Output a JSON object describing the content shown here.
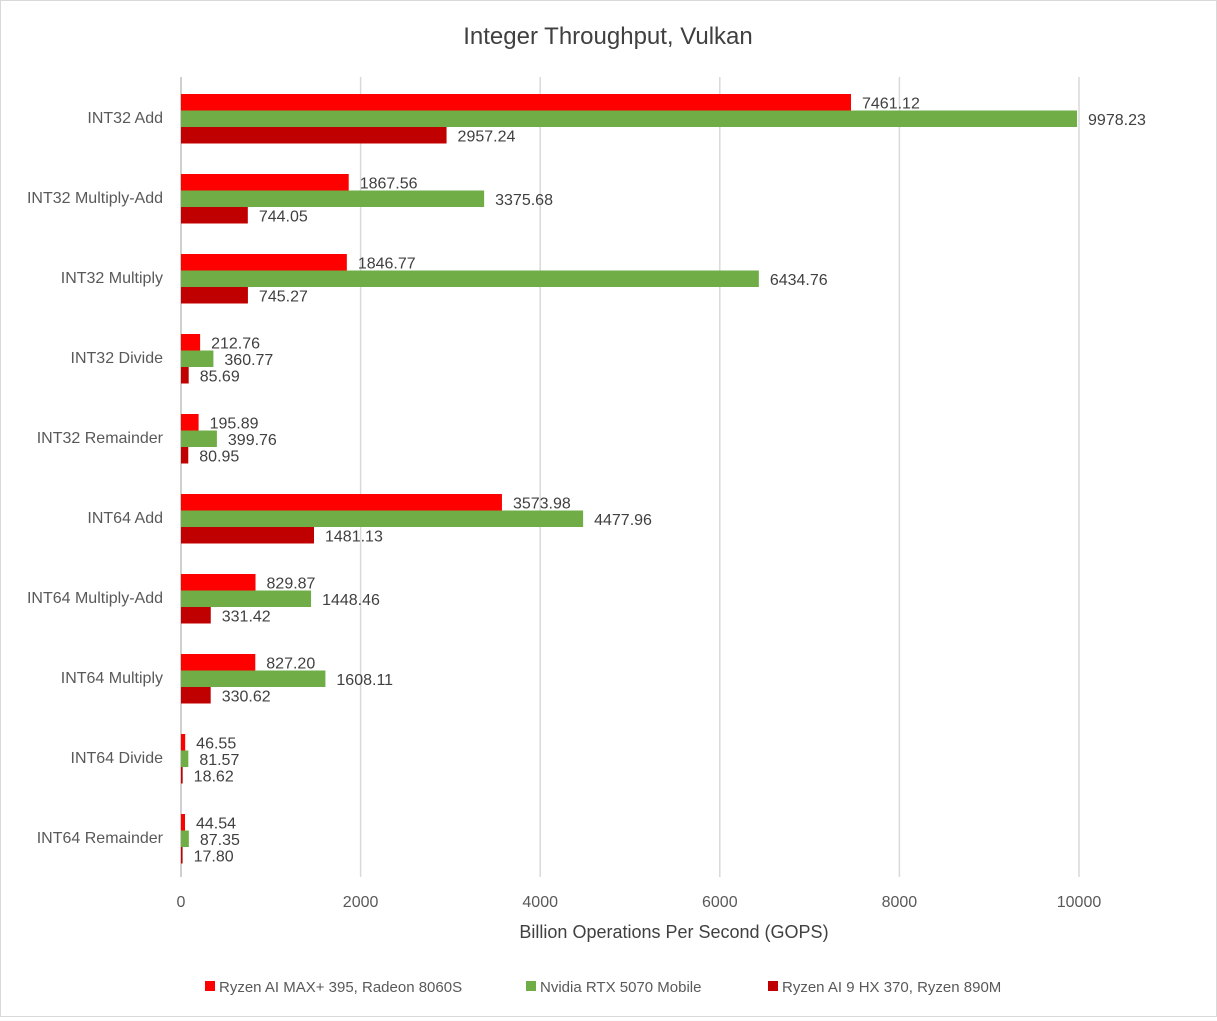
{
  "chart_data": {
    "type": "bar",
    "orientation": "horizontal",
    "title": "Integer Throughput, Vulkan",
    "xlabel": "Billion Operations Per Second (GOPS)",
    "ylabel": "",
    "xlim": [
      0,
      10000
    ],
    "xticks": [
      0,
      2000,
      4000,
      6000,
      8000,
      10000
    ],
    "grid": true,
    "legend_position": "bottom",
    "categories": [
      "INT32 Add",
      "INT32 Multiply-Add",
      "INT32 Multiply",
      "INT32 Divide",
      "INT32 Remainder",
      "INT64 Add",
      "INT64 Multiply-Add",
      "INT64 Multiply",
      "INT64 Divide",
      "INT64 Remainder"
    ],
    "series": [
      {
        "name": "Ryzen AI MAX+ 395, Radeon 8060S",
        "color": "#ff0000",
        "values": [
          7461.12,
          1867.56,
          1846.77,
          212.76,
          195.89,
          3573.98,
          829.87,
          827.2,
          46.55,
          44.54
        ],
        "labels": [
          "7461.12",
          "1867.56",
          "1846.77",
          "212.76",
          "195.89",
          "3573.98",
          "829.87",
          "827.20",
          "46.55",
          "44.54"
        ]
      },
      {
        "name": "Nvidia RTX 5070 Mobile",
        "color": "#70ad47",
        "values": [
          9978.23,
          3375.68,
          6434.76,
          360.77,
          399.76,
          4477.96,
          1448.46,
          1608.11,
          81.57,
          87.35
        ],
        "labels": [
          "9978.23",
          "3375.68",
          "6434.76",
          "360.77",
          "399.76",
          "4477.96",
          "1448.46",
          "1608.11",
          "81.57",
          "87.35"
        ]
      },
      {
        "name": "Ryzen AI 9 HX 370, Ryzen 890M",
        "color": "#c00000",
        "values": [
          2957.24,
          744.05,
          745.27,
          85.69,
          80.95,
          1481.13,
          331.42,
          330.62,
          18.62,
          17.8
        ],
        "labels": [
          "2957.24",
          "744.05",
          "745.27",
          "85.69",
          "80.95",
          "1481.13",
          "331.42",
          "330.62",
          "18.62",
          "17.80"
        ]
      }
    ]
  }
}
